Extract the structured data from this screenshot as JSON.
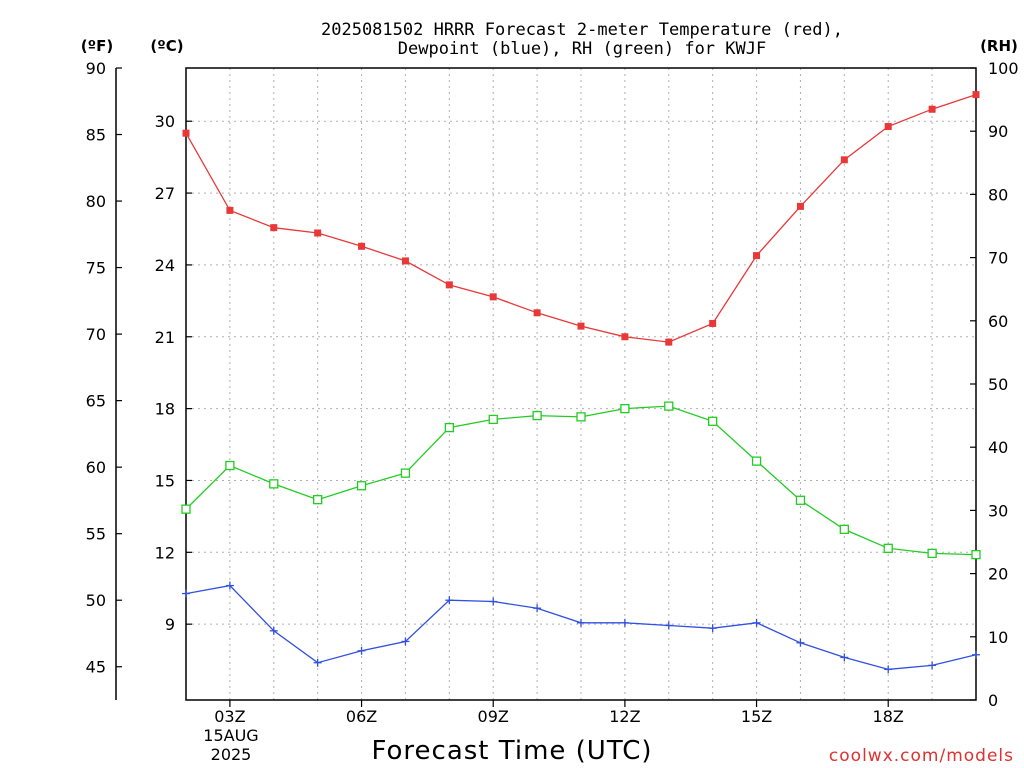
{
  "chart_data": {
    "type": "line",
    "title_line1": "2025081502 HRRR Forecast 2-meter Temperature (red),",
    "title_line2": "Dewpoint (blue), RH (green) for KWJF",
    "xlabel": "Forecast Time (UTC)",
    "credit": "coolwx.com/models",
    "units": {
      "fahrenheit": "(ºF)",
      "celsius": "(ºC)",
      "rh": "(RH)"
    },
    "date_label_line1": "15AUG",
    "date_label_line2": "2025",
    "x": [
      2,
      3,
      4,
      5,
      6,
      7,
      8,
      9,
      10,
      11,
      12,
      13,
      14,
      15,
      16,
      17,
      18,
      19,
      20
    ],
    "xlim": [
      2,
      20
    ],
    "x_ticks": [
      {
        "x": 3,
        "label": "03Z"
      },
      {
        "x": 6,
        "label": "06Z"
      },
      {
        "x": 9,
        "label": "09Z"
      },
      {
        "x": 12,
        "label": "12Z"
      },
      {
        "x": 15,
        "label": "15Z"
      },
      {
        "x": 18,
        "label": "18Z"
      }
    ],
    "y_celsius_ticks": [
      "9",
      "12",
      "15",
      "18",
      "21",
      "24",
      "27",
      "30"
    ],
    "y_fahrenheit_ticks": [
      "45",
      "50",
      "55",
      "60",
      "65",
      "70",
      "75",
      "80",
      "85",
      "90"
    ],
    "y_rh_ticks": [
      "0",
      "10",
      "20",
      "30",
      "40",
      "50",
      "60",
      "70",
      "80",
      "90",
      "100"
    ],
    "ylim_fahrenheit": [
      42.5,
      90
    ],
    "ylim_rh": [
      0,
      100
    ],
    "series": [
      {
        "name": "Temperature",
        "axis": "fahrenheit",
        "color": "#e83838",
        "marker": "filled-square",
        "values": [
          85.1,
          79.3,
          78.0,
          77.6,
          76.6,
          75.5,
          73.7,
          72.8,
          71.6,
          70.6,
          69.8,
          69.4,
          70.8,
          75.9,
          79.6,
          83.1,
          85.6,
          86.9,
          88.0
        ]
      },
      {
        "name": "Dewpoint",
        "axis": "fahrenheit",
        "color": "#3050e0",
        "marker": "plus",
        "values": [
          50.5,
          51.1,
          47.7,
          45.3,
          46.2,
          46.9,
          50.0,
          49.9,
          49.4,
          48.3,
          48.3,
          48.1,
          47.9,
          48.3,
          46.8,
          45.7,
          44.8,
          45.1,
          45.9
        ]
      },
      {
        "name": "RH",
        "axis": "rh",
        "color": "#22cc22",
        "marker": "open-square",
        "values": [
          30.2,
          37.1,
          34.2,
          31.7,
          33.9,
          35.9,
          43.1,
          44.4,
          45.0,
          44.8,
          46.1,
          46.5,
          44.1,
          37.8,
          31.6,
          27.0,
          24.0,
          23.2,
          23.0
        ]
      }
    ],
    "grid": true
  }
}
